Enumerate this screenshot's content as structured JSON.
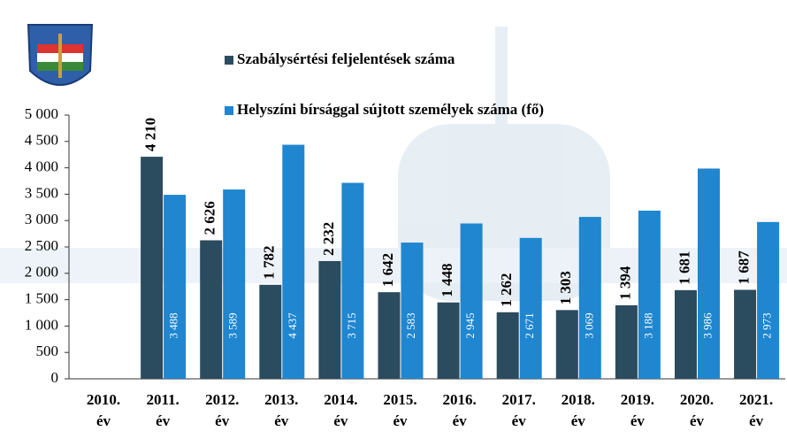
{
  "chart_data": {
    "type": "bar",
    "categories": [
      "2010. év",
      "2011. év",
      "2012. év",
      "2013. év",
      "2014. év",
      "2015. év",
      "2016. év",
      "2017. év",
      "2018. év",
      "2019. év",
      "2020. év",
      "2021. év"
    ],
    "series": [
      {
        "name": "Szabálysértési feljelentések száma",
        "color": "#2b4b5f",
        "values": [
          null,
          4210,
          2626,
          1782,
          2232,
          1642,
          1448,
          1262,
          1303,
          1394,
          1681,
          1687
        ],
        "value_labels": [
          null,
          "4 210",
          "2 626",
          "1 782",
          "2 232",
          "1 642",
          "1 448",
          "1 262",
          "1 303",
          "1 394",
          "1 681",
          "1 687"
        ]
      },
      {
        "name": "Helyszíni bírsággal sújtott személyek száma (fő)",
        "color": "#1f86cf",
        "values": [
          null,
          3488,
          3589,
          4437,
          3715,
          2583,
          2945,
          2671,
          3069,
          3188,
          3986,
          2973
        ],
        "value_labels": [
          null,
          "3 488",
          "3 589",
          "4 437",
          "3 715",
          "2 583",
          "2 945",
          "2 671",
          "3 069",
          "3 188",
          "3 986",
          "2 973"
        ]
      }
    ],
    "ylim": [
      0,
      5000
    ],
    "yticks": [
      0,
      500,
      {
        "value": 1000,
        "label": "1 000"
      },
      {
        "value": 1500,
        "label": "1 500"
      },
      {
        "value": 2000,
        "label": "2 000"
      },
      {
        "value": 2500,
        "label": "2 500"
      },
      {
        "value": 3000,
        "label": "3 000"
      },
      {
        "value": 3500,
        "label": "3 500"
      },
      {
        "value": 4000,
        "label": "4 000"
      },
      {
        "value": 4500,
        "label": "4 500"
      },
      {
        "value": 5000,
        "label": "5 000"
      }
    ]
  }
}
